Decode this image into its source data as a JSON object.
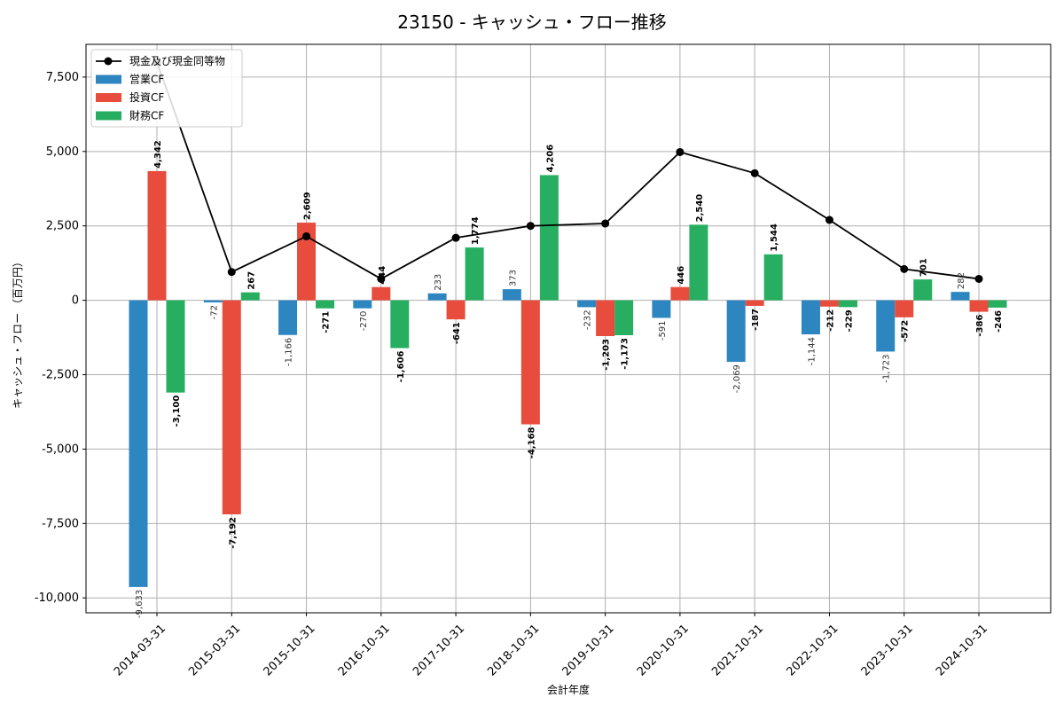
{
  "chart_data": {
    "type": "bar",
    "title": "23150 - キャッシュ・フロー推移",
    "xlabel": "会計年度",
    "ylabel": "キャッシュ・フロー （百万円）",
    "categories": [
      "2014-03-31",
      "2015-03-31",
      "2015-10-31",
      "2016-10-31",
      "2017-10-31",
      "2018-10-31",
      "2019-10-31",
      "2020-10-31",
      "2021-10-31",
      "2022-10-31",
      "2023-10-31",
      "2024-10-31"
    ],
    "ylim": [
      -10500,
      8600
    ],
    "yticks": [
      -10000,
      -7500,
      -5000,
      -2500,
      0,
      2500,
      5000,
      7500
    ],
    "ytick_labels": [
      "-10,000",
      "-7,500",
      "-5,000",
      "-2,500",
      "0",
      "2,500",
      "5,000",
      "7,500"
    ],
    "grid": true,
    "legend_position": "top-left",
    "series": [
      {
        "name": "営業CF",
        "kind": "bar",
        "color": "#2e86c1",
        "values": [
          -9633,
          -72,
          -1166,
          -270,
          233,
          373,
          -232,
          -591,
          -2069,
          -1144,
          -1723,
          282
        ],
        "labels": [
          "-9,633",
          "-72",
          "-1,166",
          "-270",
          "233",
          "373",
          "-232",
          "-591",
          "-2,069",
          "-1,144",
          "-1,723",
          "282"
        ]
      },
      {
        "name": "投資CF",
        "kind": "bar",
        "color": "#e74c3c",
        "values": [
          4342,
          -7192,
          2609,
          444,
          -641,
          -4168,
          -1203,
          446,
          -187,
          -212,
          -572,
          -386
        ],
        "labels": [
          "4,342",
          "-7,192",
          "2,609",
          "444",
          "-641",
          "-4,168",
          "-1,203",
          "446",
          "-187",
          "-212",
          "-572",
          "-386"
        ]
      },
      {
        "name": "財務CF",
        "kind": "bar",
        "color": "#27ae60",
        "values": [
          -3100,
          267,
          -271,
          -1606,
          1774,
          4206,
          -1173,
          2540,
          1544,
          -229,
          701,
          -246
        ],
        "labels": [
          "-3,100",
          "267",
          "-271",
          "-1,606",
          "1,774",
          "4,206",
          "-1,173",
          "2,540",
          "1,544",
          "-229",
          "701",
          "-246"
        ]
      },
      {
        "name": "現金及び現金同等物",
        "kind": "line",
        "color": "#000000",
        "values": [
          8000,
          950,
          2150,
          720,
          2100,
          2500,
          2580,
          4980,
          4270,
          2700,
          1050,
          720
        ]
      }
    ]
  }
}
